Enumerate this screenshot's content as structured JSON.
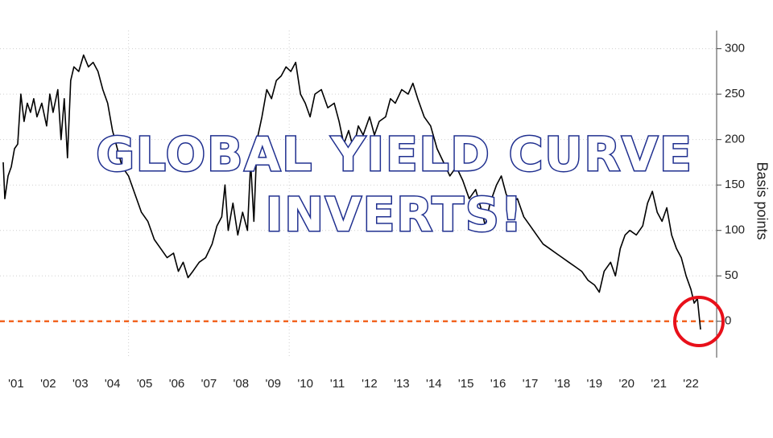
{
  "chart_data": {
    "type": "line",
    "title_lines": [
      "GLOBAL YIELD CURVE",
      "INVERTS!"
    ],
    "ylabel": "Basis points",
    "color": "#000000",
    "hline": 0,
    "hline_color": "#f26522",
    "xlim": [
      2001,
      2023.3
    ],
    "ylim": [
      -40,
      320
    ],
    "yticks": [
      300,
      250,
      200,
      150,
      100,
      50,
      0
    ],
    "xticks": [
      {
        "value": 2001.5,
        "label": "'01"
      },
      {
        "value": 2002.5,
        "label": "'02"
      },
      {
        "value": 2003.5,
        "label": "'03"
      },
      {
        "value": 2004.5,
        "label": "'04"
      },
      {
        "value": 2005.5,
        "label": "'05"
      },
      {
        "value": 2006.5,
        "label": "'06"
      },
      {
        "value": 2007.5,
        "label": "'07"
      },
      {
        "value": 2008.5,
        "label": "'08"
      },
      {
        "value": 2009.5,
        "label": "'09"
      },
      {
        "value": 2010.5,
        "label": "'10"
      },
      {
        "value": 2011.5,
        "label": "'11"
      },
      {
        "value": 2012.5,
        "label": "'12"
      },
      {
        "value": 2013.5,
        "label": "'13"
      },
      {
        "value": 2014.5,
        "label": "'14"
      },
      {
        "value": 2015.5,
        "label": "'15"
      },
      {
        "value": 2016.5,
        "label": "'16"
      },
      {
        "value": 2017.5,
        "label": "'17"
      },
      {
        "value": 2018.5,
        "label": "'18"
      },
      {
        "value": 2019.5,
        "label": "'19"
      },
      {
        "value": 2020.5,
        "label": "'20"
      },
      {
        "value": 2021.5,
        "label": "'21"
      },
      {
        "value": 2022.5,
        "label": "'22"
      }
    ],
    "xgrid": [
      2005,
      2010
    ],
    "grid": true,
    "x": [
      2001.1,
      2001.15,
      2001.25,
      2001.35,
      2001.45,
      2001.55,
      2001.65,
      2001.75,
      2001.85,
      2001.95,
      2002.05,
      2002.15,
      2002.3,
      2002.45,
      2002.55,
      2002.65,
      2002.8,
      2002.9,
      2003.0,
      2003.1,
      2003.2,
      2003.3,
      2003.45,
      2003.6,
      2003.75,
      2003.9,
      2004.05,
      2004.2,
      2004.35,
      2004.5,
      2004.65,
      2004.8,
      2005.0,
      2005.2,
      2005.4,
      2005.6,
      2005.8,
      2006.0,
      2006.2,
      2006.4,
      2006.55,
      2006.7,
      2006.85,
      2007.0,
      2007.2,
      2007.4,
      2007.6,
      2007.75,
      2007.9,
      2008.0,
      2008.1,
      2008.25,
      2008.4,
      2008.55,
      2008.7,
      2008.8,
      2008.9,
      2009.0,
      2009.15,
      2009.3,
      2009.45,
      2009.6,
      2009.75,
      2009.9,
      2010.05,
      2010.2,
      2010.35,
      2010.5,
      2010.65,
      2010.8,
      2011.0,
      2011.2,
      2011.4,
      2011.55,
      2011.7,
      2011.85,
      2012.0,
      2012.15,
      2012.3,
      2012.5,
      2012.65,
      2012.8,
      2013.0,
      2013.15,
      2013.3,
      2013.5,
      2013.7,
      2013.85,
      2014.0,
      2014.2,
      2014.4,
      2014.6,
      2014.8,
      2015.0,
      2015.2,
      2015.4,
      2015.6,
      2015.8,
      2016.0,
      2016.1,
      2016.25,
      2016.45,
      2016.6,
      2016.75,
      2016.9,
      2017.1,
      2017.3,
      2017.5,
      2017.7,
      2017.9,
      2018.1,
      2018.3,
      2018.5,
      2018.7,
      2018.9,
      2019.1,
      2019.3,
      2019.5,
      2019.65,
      2019.8,
      2020.0,
      2020.15,
      2020.3,
      2020.45,
      2020.6,
      2020.8,
      2021.0,
      2021.15,
      2021.3,
      2021.45,
      2021.6,
      2021.75,
      2021.9,
      2022.05,
      2022.2,
      2022.35,
      2022.5,
      2022.6,
      2022.7,
      2022.8
    ],
    "values": [
      175,
      135,
      160,
      170,
      190,
      195,
      250,
      220,
      240,
      230,
      245,
      225,
      240,
      215,
      250,
      230,
      255,
      200,
      245,
      180,
      265,
      280,
      275,
      293,
      280,
      285,
      275,
      255,
      240,
      210,
      190,
      170,
      160,
      140,
      120,
      110,
      90,
      80,
      70,
      75,
      55,
      65,
      48,
      55,
      65,
      70,
      85,
      105,
      115,
      150,
      100,
      130,
      95,
      120,
      100,
      175,
      110,
      200,
      225,
      255,
      245,
      265,
      270,
      280,
      275,
      285,
      250,
      240,
      225,
      250,
      255,
      235,
      240,
      220,
      195,
      210,
      190,
      215,
      205,
      225,
      205,
      220,
      225,
      245,
      240,
      255,
      250,
      262,
      245,
      225,
      215,
      190,
      175,
      160,
      170,
      155,
      135,
      145,
      120,
      105,
      130,
      150,
      160,
      140,
      130,
      135,
      115,
      105,
      95,
      85,
      80,
      75,
      70,
      65,
      60,
      55,
      45,
      40,
      32,
      55,
      65,
      50,
      80,
      95,
      100,
      95,
      105,
      130,
      143,
      120,
      110,
      125,
      95,
      80,
      70,
      50,
      35,
      20,
      25,
      -9
    ]
  }
}
